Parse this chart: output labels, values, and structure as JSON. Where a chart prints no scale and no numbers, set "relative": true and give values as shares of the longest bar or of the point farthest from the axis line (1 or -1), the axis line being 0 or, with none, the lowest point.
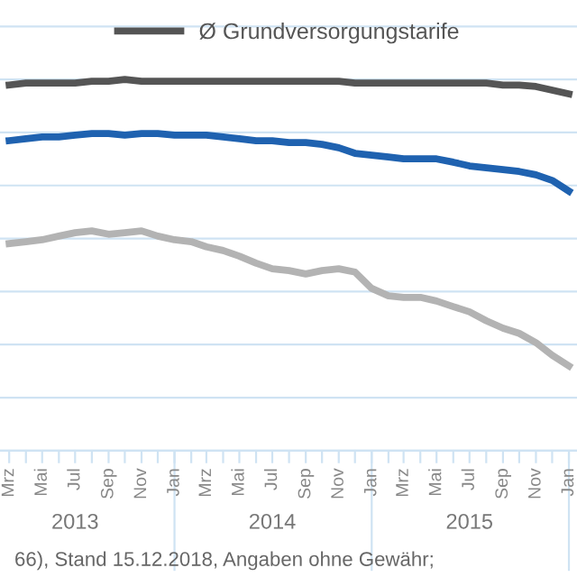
{
  "chart_data": {
    "type": "line",
    "relative": true,
    "grid": "y",
    "legend": "top",
    "marker": "none",
    "line_style": "solid",
    "x": [
      "2013-03",
      "2013-04",
      "2013-05",
      "2013-06",
      "2013-07",
      "2013-08",
      "2013-09",
      "2013-10",
      "2013-11",
      "2013-12",
      "2014-01",
      "2014-02",
      "2014-03",
      "2014-04",
      "2014-05",
      "2014-06",
      "2014-07",
      "2014-08",
      "2014-09",
      "2014-10",
      "2014-11",
      "2014-12",
      "2015-01",
      "2015-02",
      "2015-03",
      "2015-04",
      "2015-05",
      "2015-06",
      "2015-07",
      "2015-08",
      "2015-09",
      "2015-10",
      "2015-11",
      "2015-12",
      "2016-01"
    ],
    "series": [
      {
        "name": "Ø Grundversorgungstarife",
        "color": "#555555",
        "values": [
          0.985,
          0.99,
          0.99,
          0.99,
          0.99,
          0.995,
          0.995,
          1,
          0.995,
          0.995,
          0.995,
          0.995,
          0.995,
          0.995,
          0.995,
          0.995,
          0.995,
          0.995,
          0.995,
          0.995,
          0.995,
          0.99,
          0.99,
          0.99,
          0.99,
          0.99,
          0.99,
          0.99,
          0.99,
          0.99,
          0.985,
          0.985,
          0.981,
          0.971,
          0.961
        ]
      },
      {
        "color": "#1f62b0",
        "values": [
          0.835,
          0.84,
          0.845,
          0.845,
          0.85,
          0.854,
          0.854,
          0.85,
          0.854,
          0.854,
          0.85,
          0.85,
          0.85,
          0.845,
          0.84,
          0.835,
          0.835,
          0.83,
          0.83,
          0.825,
          0.816,
          0.801,
          0.796,
          0.791,
          0.786,
          0.786,
          0.786,
          0.777,
          0.767,
          0.762,
          0.757,
          0.752,
          0.743,
          0.728,
          0.699
        ]
      },
      {
        "color": "#b3b3b3",
        "values": [
          0.558,
          0.563,
          0.568,
          0.578,
          0.587,
          0.592,
          0.583,
          0.587,
          0.592,
          0.578,
          0.568,
          0.563,
          0.549,
          0.539,
          0.524,
          0.505,
          0.49,
          0.485,
          0.476,
          0.485,
          0.49,
          0.481,
          0.437,
          0.417,
          0.413,
          0.413,
          0.403,
          0.388,
          0.374,
          0.35,
          0.33,
          0.316,
          0.291,
          0.257,
          0.228
        ]
      }
    ],
    "xlim": [
      "2013-02-12",
      "2016-01-16"
    ],
    "xticks": [
      {
        "value": "2013-03",
        "label": "Mrz"
      },
      {
        "value": "2013-04",
        "label": null
      },
      {
        "value": "2013-05",
        "label": "Mai"
      },
      {
        "value": "2013-06",
        "label": null
      },
      {
        "value": "2013-07",
        "label": "Jul"
      },
      {
        "value": "2013-08",
        "label": null
      },
      {
        "value": "2013-09",
        "label": "Sep"
      },
      {
        "value": "2013-10",
        "label": null
      },
      {
        "value": "2013-11",
        "label": "Nov"
      },
      {
        "value": "2013-12",
        "label": null
      },
      {
        "value": "2014-01",
        "label": "Jan"
      },
      {
        "value": "2014-02",
        "label": null
      },
      {
        "value": "2014-03",
        "label": "Mrz"
      },
      {
        "value": "2014-04",
        "label": null
      },
      {
        "value": "2014-05",
        "label": "Mai"
      },
      {
        "value": "2014-06",
        "label": null
      },
      {
        "value": "2014-07",
        "label": "Jul"
      },
      {
        "value": "2014-08",
        "label": null
      },
      {
        "value": "2014-09",
        "label": "Sep"
      },
      {
        "value": "2014-10",
        "label": null
      },
      {
        "value": "2014-11",
        "label": "Nov"
      },
      {
        "value": "2014-12",
        "label": null
      },
      {
        "value": "2015-01",
        "label": "Jan"
      },
      {
        "value": "2015-02",
        "label": null
      },
      {
        "value": "2015-03",
        "label": "Mrz"
      },
      {
        "value": "2015-04",
        "label": null
      },
      {
        "value": "2015-05",
        "label": "Mai"
      },
      {
        "value": "2015-06",
        "label": null
      },
      {
        "value": "2015-07",
        "label": "Jul"
      },
      {
        "value": "2015-08",
        "label": null
      },
      {
        "value": "2015-09",
        "label": "Sep"
      },
      {
        "value": "2015-10",
        "label": null
      },
      {
        "value": "2015-11",
        "label": "Nov"
      },
      {
        "value": "2015-12",
        "label": null
      },
      {
        "value": "2016-01",
        "label": "Jan"
      }
    ],
    "x2lim": [
      "2013-02-12",
      "2016-01-16"
    ],
    "x2ticks": [
      {
        "value": "2013-07-01",
        "label": "2013"
      },
      {
        "value": "2014-01-01",
        "label": null
      },
      {
        "value": "2014-07-01",
        "label": "2014"
      },
      {
        "value": "2015-01-01",
        "label": null
      },
      {
        "value": "2015-07-01",
        "label": "2015"
      },
      {
        "value": "2016-01-01",
        "label": null
      }
    ],
    "annotations": [
      "66), Stand 15.12.2018, Angaben ohne Gewähr;"
    ]
  }
}
